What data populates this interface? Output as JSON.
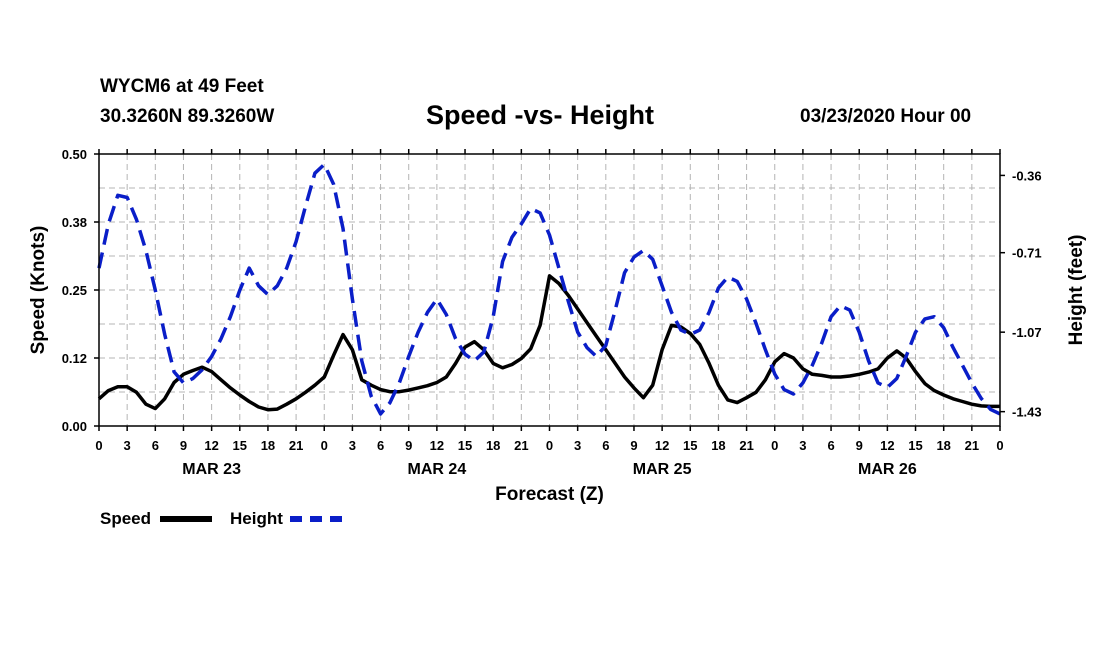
{
  "header": {
    "station": "WYCM6 at 49 Feet",
    "coords": "30.3260N 89.3260W",
    "title": "Speed -vs- Height",
    "datetime": "03/23/2020 Hour 00"
  },
  "legend": {
    "speed_label": "Speed",
    "height_label": "Height"
  },
  "colors": {
    "speed": "#000000",
    "height": "#0a1ec8",
    "grid": "#b4b4b4"
  },
  "chart_data": {
    "type": "line",
    "xlabel": "Forecast (Z)",
    "ylabel": "Speed (Knots)",
    "ylabel_right": "Height (feet)",
    "x_range": [
      0,
      96
    ],
    "ylim": [
      0,
      0.5
    ],
    "ylim_right": [
      -1.495,
      -0.263
    ],
    "yticks": [
      "0.00",
      "0.12",
      "0.25",
      "0.38",
      "0.50"
    ],
    "yticks_values": [
      0,
      0.125,
      0.25,
      0.375,
      0.5
    ],
    "yticks_right": [
      "-1.43",
      "-1.07",
      "-0.71",
      "-0.36"
    ],
    "yticks_right_values": [
      -1.43,
      -1.07,
      -0.71,
      -0.36
    ],
    "x_tick_labels": [
      "0",
      "3",
      "6",
      "9",
      "12",
      "15",
      "18",
      "21",
      "0",
      "3",
      "6",
      "9",
      "12",
      "15",
      "18",
      "21",
      "0",
      "3",
      "6",
      "9",
      "12",
      "15",
      "18",
      "21",
      "0",
      "3",
      "6",
      "9",
      "12",
      "15",
      "18",
      "21",
      "0"
    ],
    "day_labels": [
      "MAR 23",
      "MAR 24",
      "MAR 25",
      "MAR 26"
    ],
    "grid": true,
    "series": [
      {
        "name": "Speed",
        "axis": "left",
        "style": "solid",
        "x": [
          0,
          1,
          2,
          3,
          4,
          5,
          6,
          7,
          8,
          9,
          10,
          11,
          12,
          13,
          14,
          15,
          16,
          17,
          18,
          19,
          20,
          21,
          22,
          23,
          24,
          25,
          26,
          27,
          28,
          29,
          30,
          31,
          32,
          33,
          34,
          35,
          36,
          37,
          38,
          39,
          40,
          41,
          42,
          43,
          44,
          45,
          46,
          47,
          48,
          49,
          50,
          51,
          52,
          53,
          54,
          55,
          56,
          57,
          58,
          59,
          60,
          61,
          62,
          63,
          64,
          65,
          66,
          67,
          68,
          69,
          70,
          71,
          72,
          73,
          74,
          75,
          76,
          77,
          78,
          79,
          80,
          81,
          82,
          83,
          84,
          85,
          86,
          87,
          88,
          89,
          90,
          91,
          92,
          93,
          94,
          95,
          96
        ],
        "values": [
          0.05,
          0.065,
          0.072,
          0.072,
          0.062,
          0.04,
          0.032,
          0.05,
          0.08,
          0.095,
          0.102,
          0.108,
          0.1,
          0.085,
          0.07,
          0.057,
          0.045,
          0.035,
          0.03,
          0.031,
          0.04,
          0.05,
          0.062,
          0.075,
          0.09,
          0.13,
          0.168,
          0.14,
          0.085,
          0.075,
          0.067,
          0.063,
          0.063,
          0.066,
          0.07,
          0.074,
          0.08,
          0.09,
          0.115,
          0.145,
          0.155,
          0.14,
          0.115,
          0.107,
          0.113,
          0.124,
          0.142,
          0.185,
          0.276,
          0.262,
          0.24,
          0.215,
          0.19,
          0.165,
          0.14,
          0.115,
          0.09,
          0.07,
          0.052,
          0.075,
          0.14,
          0.185,
          0.182,
          0.17,
          0.15,
          0.115,
          0.075,
          0.048,
          0.043,
          0.052,
          0.062,
          0.085,
          0.118,
          0.133,
          0.125,
          0.105,
          0.095,
          0.093,
          0.09,
          0.09,
          0.092,
          0.095,
          0.099,
          0.105,
          0.125,
          0.138,
          0.125,
          0.1,
          0.078,
          0.065,
          0.057,
          0.05,
          0.045,
          0.04,
          0.037,
          0.036,
          0.036
        ]
      },
      {
        "name": "Height",
        "axis": "right",
        "style": "dashed",
        "x": [
          0,
          1,
          2,
          3,
          4,
          5,
          6,
          7,
          8,
          9,
          10,
          11,
          12,
          13,
          14,
          15,
          16,
          17,
          18,
          19,
          20,
          21,
          22,
          23,
          24,
          25,
          26,
          27,
          28,
          29,
          30,
          31,
          32,
          33,
          34,
          35,
          36,
          37,
          38,
          39,
          40,
          41,
          42,
          43,
          44,
          45,
          46,
          47,
          48,
          49,
          50,
          51,
          52,
          53,
          54,
          55,
          56,
          57,
          58,
          59,
          60,
          61,
          62,
          63,
          64,
          65,
          66,
          67,
          68,
          69,
          70,
          71,
          72,
          73,
          74,
          75,
          76,
          77,
          78,
          79,
          80,
          81,
          82,
          83,
          84,
          85,
          86,
          87,
          88,
          89,
          90,
          91,
          92,
          93,
          94,
          95,
          96
        ],
        "values": [
          -0.78,
          -0.58,
          -0.45,
          -0.46,
          -0.56,
          -0.7,
          -0.88,
          -1.08,
          -1.25,
          -1.3,
          -1.28,
          -1.24,
          -1.18,
          -1.1,
          -1.0,
          -0.88,
          -0.78,
          -0.86,
          -0.9,
          -0.86,
          -0.78,
          -0.66,
          -0.5,
          -0.35,
          -0.31,
          -0.4,
          -0.6,
          -0.92,
          -1.2,
          -1.36,
          -1.44,
          -1.39,
          -1.3,
          -1.18,
          -1.07,
          -0.98,
          -0.92,
          -0.99,
          -1.1,
          -1.17,
          -1.2,
          -1.16,
          -1.0,
          -0.75,
          -0.64,
          -0.58,
          -0.51,
          -0.53,
          -0.63,
          -0.78,
          -0.93,
          -1.07,
          -1.14,
          -1.18,
          -1.13,
          -0.97,
          -0.8,
          -0.73,
          -0.7,
          -0.74,
          -0.86,
          -0.98,
          -1.06,
          -1.08,
          -1.06,
          -0.98,
          -0.87,
          -0.82,
          -0.84,
          -0.92,
          -1.03,
          -1.15,
          -1.26,
          -1.33,
          -1.35,
          -1.3,
          -1.22,
          -1.12,
          -1.0,
          -0.95,
          -0.97,
          -1.07,
          -1.2,
          -1.3,
          -1.32,
          -1.28,
          -1.18,
          -1.07,
          -1.01,
          -1.0,
          -1.05,
          -1.14,
          -1.22,
          -1.3,
          -1.37,
          -1.42,
          -1.44
        ]
      }
    ]
  }
}
